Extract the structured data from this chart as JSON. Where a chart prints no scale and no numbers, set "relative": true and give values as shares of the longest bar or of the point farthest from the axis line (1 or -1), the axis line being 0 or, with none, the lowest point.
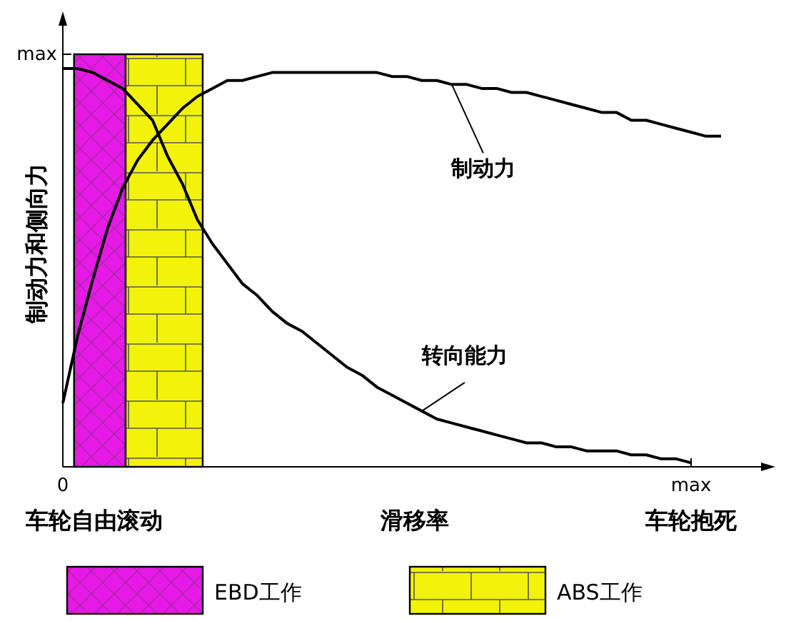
{
  "chart_data": {
    "type": "line",
    "relative": true,
    "xlabel": "滑移率",
    "ylabel": "制动力和侧向力",
    "categories": [
      null,
      null,
      null,
      null,
      null,
      null,
      null,
      null,
      null,
      null,
      null,
      null,
      null,
      null,
      null,
      null,
      null,
      null,
      null,
      null,
      null,
      null,
      null,
      null,
      null,
      null,
      null,
      null,
      null,
      null,
      null,
      null,
      null,
      null,
      null,
      null,
      null,
      null,
      null,
      null,
      null,
      null,
      null,
      null,
      null
    ],
    "series": [
      {
        "name": "制动力",
        "color": "#000000",
        "values": [
          0.16,
          0.33,
          0.47,
          0.6,
          0.7,
          0.77,
          0.82,
          0.86,
          0.9,
          0.93,
          0.95,
          0.97,
          0.97,
          0.98,
          0.99,
          0.99,
          0.99,
          0.99,
          0.99,
          0.99,
          0.99,
          0.99,
          0.98,
          0.98,
          0.97,
          0.97,
          0.96,
          0.96,
          0.95,
          0.95,
          0.94,
          0.94,
          0.93,
          0.92,
          0.91,
          0.9,
          0.89,
          0.89,
          0.87,
          0.87,
          0.86,
          0.85,
          0.84,
          0.83,
          0.83
        ]
      },
      {
        "name": "转向能力",
        "color": "#000000",
        "values": [
          1,
          1,
          0.99,
          0.97,
          0.95,
          0.91,
          0.87,
          0.78,
          0.71,
          0.62,
          0.56,
          0.51,
          0.46,
          0.43,
          0.39,
          0.36,
          0.34,
          0.31,
          0.28,
          0.25,
          0.23,
          0.2,
          0.18,
          0.16,
          0.14,
          0.12,
          0.11,
          0.1,
          0.09,
          0.08,
          0.07,
          0.06,
          0.06,
          0.05,
          0.05,
          0.04,
          0.04,
          0.04,
          0.03,
          0.03,
          0.02,
          0.02,
          0.01,
          null,
          null
        ]
      }
    ],
    "annotations": [
      "max",
      "0",
      "max",
      "车轮自由滚动",
      "车轮抱死",
      "EBD工作",
      "ABS工作"
    ],
    "marker": "none",
    "line_style": "solid"
  }
}
